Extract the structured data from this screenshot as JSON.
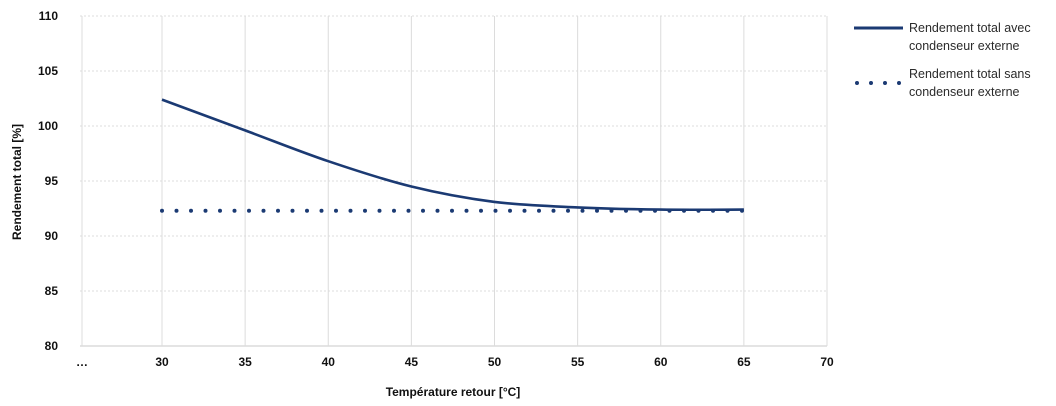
{
  "chart_data": {
    "type": "line",
    "xlabel": "Température retour [°C]",
    "ylabel": "Rendement total [%]",
    "x_tick_labels": [
      "…",
      "30",
      "35",
      "40",
      "45",
      "50",
      "55",
      "60",
      "65",
      "70"
    ],
    "y_tick_labels": [
      "80",
      "85",
      "90",
      "95",
      "100",
      "105",
      "110"
    ],
    "ylim": [
      80,
      110
    ],
    "grid": true,
    "legend_position": "right",
    "series": [
      {
        "name": "Rendement total avec condenseur externe",
        "style": "solid",
        "color": "#1b3a73",
        "x": [
          30,
          35,
          40,
          45,
          50,
          55,
          60,
          65
        ],
        "y": [
          102.4,
          99.6,
          96.8,
          94.5,
          93.1,
          92.6,
          92.4,
          92.4
        ]
      },
      {
        "name": "Rendement total sans condenseur externe",
        "style": "dotted",
        "color": "#1b3a73",
        "x": [
          30,
          65
        ],
        "y": [
          92.3,
          92.3
        ]
      }
    ],
    "legend": {
      "entries": [
        {
          "line1": "Rendement total avec",
          "line2": "condenseur externe"
        },
        {
          "line1": "Rendement total sans",
          "line2": "condenseur externe"
        }
      ]
    }
  }
}
